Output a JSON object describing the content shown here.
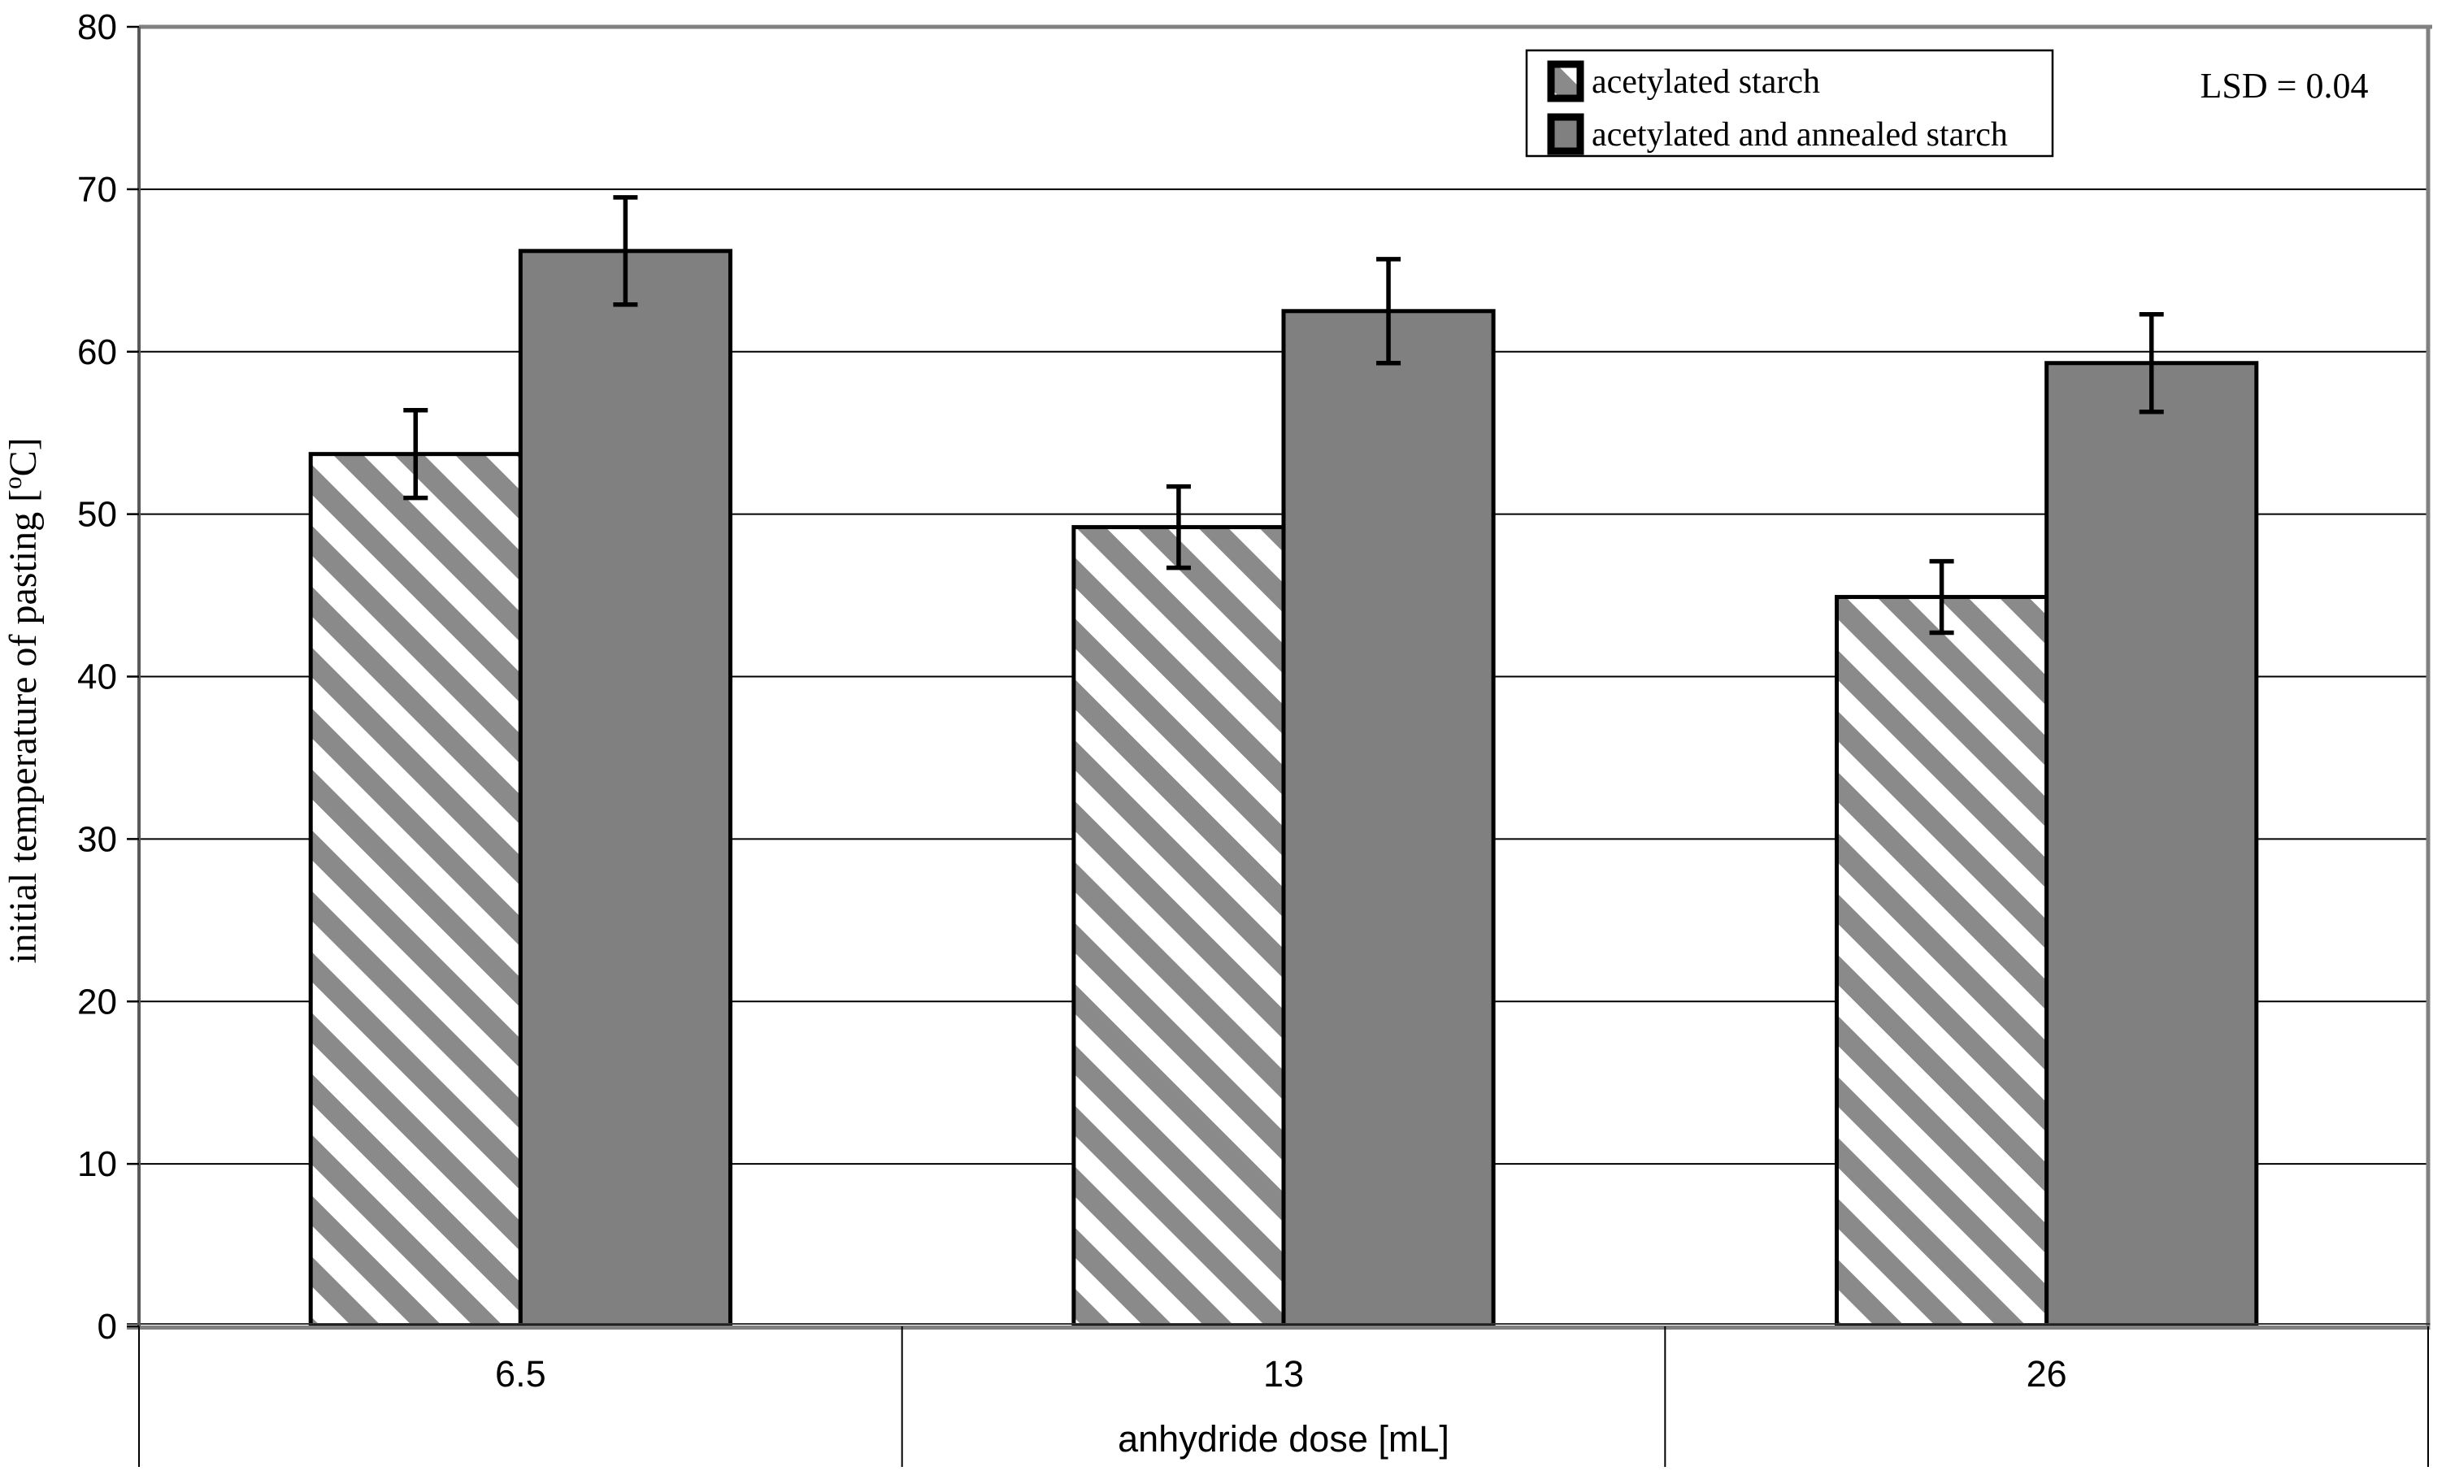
{
  "figure": {
    "lsd_note": "LSD = 0.04"
  },
  "colors": {
    "solid_bar_fill": "#808080",
    "hatch_stripe": "#8a8a8a",
    "hatch_background": "#ffffff",
    "bar_border": "#000000",
    "plot_border_gray": "#808080",
    "axis_line": "#595959",
    "gridline": "#000000",
    "text": "#000000",
    "legend_border": "#000000",
    "legend_background": "#ffffff"
  },
  "chart_data": {
    "type": "bar",
    "title": "",
    "xlabel": "anhydride dose [mL]",
    "ylabel": "initial temperature of pasting [°C]",
    "ylabel_parts": {
      "prefix": "initial temperature of pasting [",
      "superscript": "o",
      "suffix": "C]"
    },
    "categories": [
      "6.5",
      "13",
      "26"
    ],
    "y_axis": {
      "min": 0,
      "max": 80,
      "tick_step": 10,
      "tick_labels": [
        "0",
        "10",
        "20",
        "30",
        "40",
        "50",
        "60",
        "70",
        "80"
      ]
    },
    "grid": true,
    "legend_position": "top-right",
    "series": [
      {
        "name": "acetylated starch",
        "style": "hatched",
        "fill": "#ffffff",
        "stripe": "#8a8a8a",
        "values": [
          53.7,
          49.2,
          44.9
        ],
        "error_plus": [
          2.7,
          2.5,
          2.2
        ],
        "error_minus": [
          2.7,
          2.5,
          2.2
        ]
      },
      {
        "name": "acetylated and annealed starch",
        "style": "solid",
        "fill": "#808080",
        "values": [
          66.2,
          62.5,
          59.3
        ],
        "error_plus": [
          3.3,
          3.2,
          3.0
        ],
        "error_minus": [
          3.3,
          3.2,
          3.0
        ]
      }
    ]
  }
}
